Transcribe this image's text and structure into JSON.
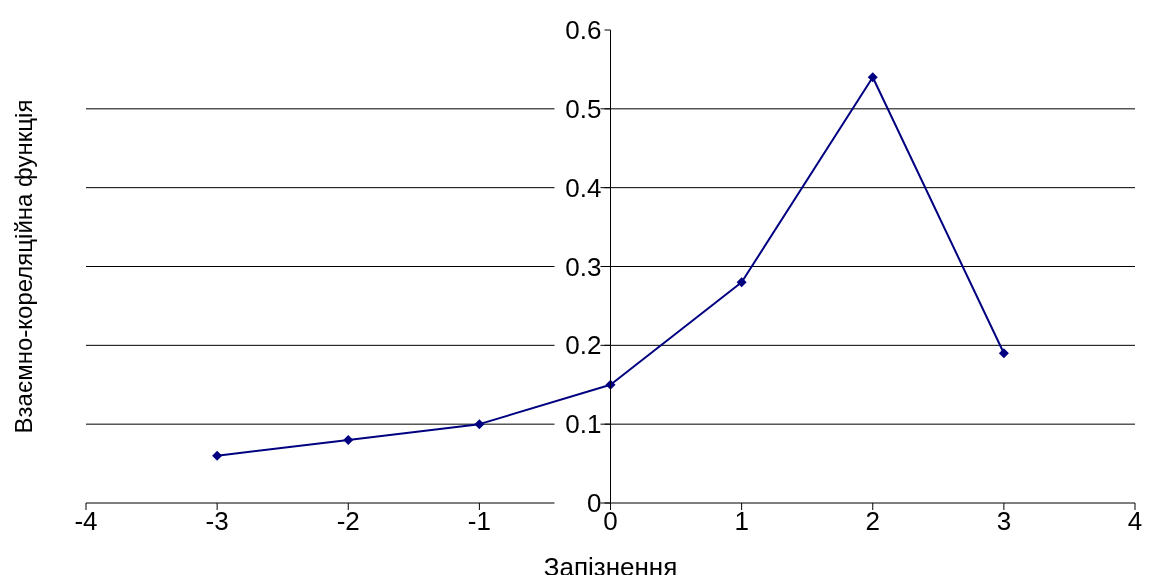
{
  "chart_data": {
    "type": "line",
    "xlabel": "Запізнення",
    "ylabel": "Взаємно-кореляційна функція",
    "x": [
      -3,
      -2,
      -1,
      0,
      1,
      2,
      3
    ],
    "series": [
      {
        "color": "#000080",
        "values": [
          0.06,
          0.08,
          0.1,
          0.15,
          0.28,
          0.54,
          0.19
        ]
      }
    ],
    "xlim": [
      -4,
      4
    ],
    "xticks": [
      -4,
      -2,
      -1,
      0,
      1,
      2,
      3,
      4,
      -3
    ],
    "ylim": [
      0,
      0.6
    ],
    "yticks": [
      0,
      0.1,
      0.2,
      0.3,
      0.4,
      0.5,
      0.6
    ],
    "grid": "y",
    "marker": "diamond",
    "line_style": "solid"
  }
}
